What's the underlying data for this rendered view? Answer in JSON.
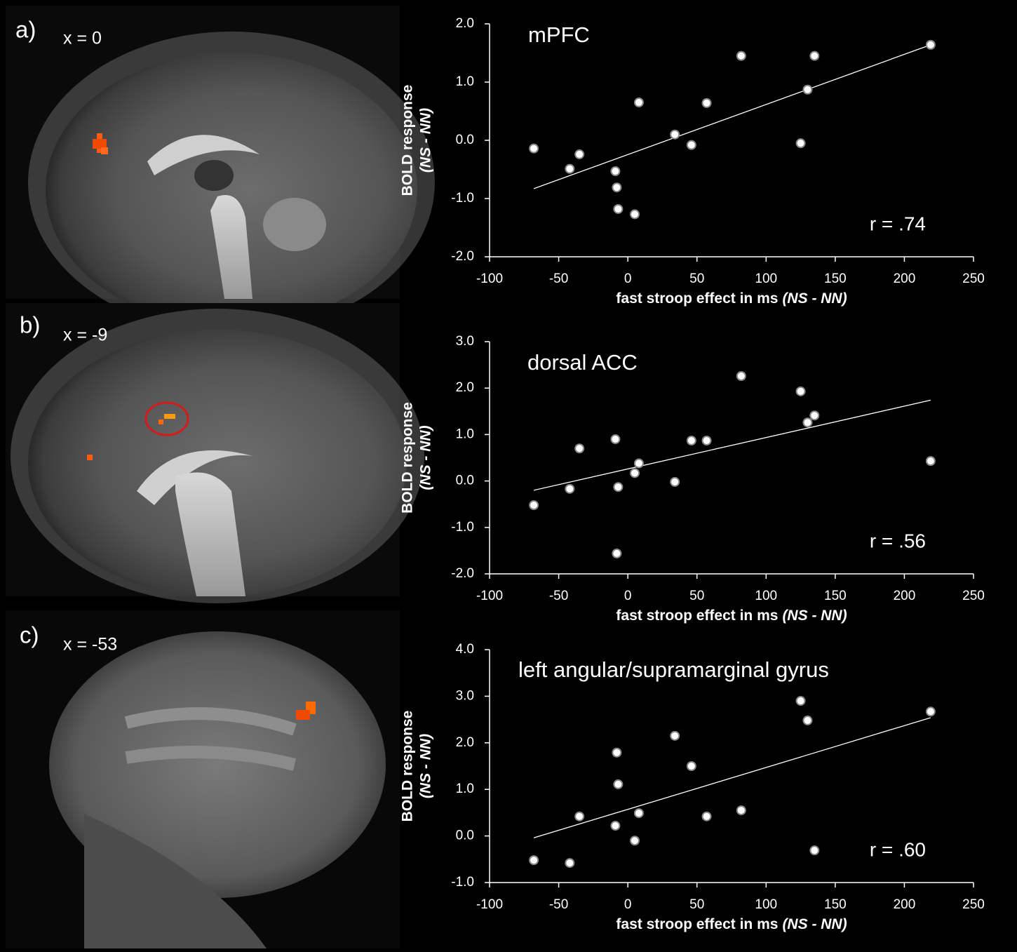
{
  "panels": [
    {
      "label": "a)",
      "slice": "x = 0"
    },
    {
      "label": "b)",
      "slice": "x = -9"
    },
    {
      "label": "c)",
      "slice": "x = -53"
    }
  ],
  "chart_data": [
    {
      "type": "scatter",
      "title": "mPFC",
      "annotation": "r = .74",
      "xlabel": "fast stroop effect in ms",
      "xlabel_suffix": "(NS - NN)",
      "ylabel": "BOLD response",
      "ylabel_sub": "(NS - NN)",
      "color": "#ffffff",
      "x": [
        -68,
        -42,
        -35,
        -9,
        -8,
        -7,
        5,
        8,
        34,
        46,
        57,
        82,
        125,
        130,
        135,
        219
      ],
      "y": [
        -0.14,
        -0.49,
        -0.24,
        -0.53,
        -0.81,
        -1.18,
        -1.27,
        0.65,
        0.1,
        -0.08,
        0.64,
        1.45,
        -0.05,
        0.87,
        1.45,
        1.64
      ],
      "trendline": {
        "x": [
          -68,
          219
        ],
        "y": [
          -0.83,
          1.64
        ]
      },
      "xlim": [
        -100,
        250
      ],
      "xticks": [
        -100,
        -50,
        0,
        50,
        100,
        150,
        200,
        250
      ],
      "ylim": [
        -2,
        2
      ],
      "yticks": [
        {
          "value": -2,
          "label": "-2.0"
        },
        {
          "value": -1,
          "label": "-1.0"
        },
        {
          "value": 0,
          "label": "0.0"
        },
        {
          "value": 1,
          "label": "1.0"
        },
        {
          "value": 2,
          "label": "2.0"
        }
      ]
    },
    {
      "type": "scatter",
      "title": "dorsal ACC",
      "annotation": "r = .56",
      "xlabel": "fast stroop effect in ms",
      "xlabel_suffix": "(NS - NN)",
      "ylabel": "BOLD response",
      "ylabel_sub": "(NS - NN)",
      "color": "#ffffff",
      "x": [
        -68,
        -42,
        -35,
        -9,
        -8,
        -7,
        5,
        8,
        34,
        46,
        57,
        82,
        125,
        130,
        135,
        219
      ],
      "y": [
        -0.52,
        -0.17,
        0.7,
        0.9,
        -1.56,
        -0.13,
        0.17,
        0.38,
        -0.02,
        0.87,
        0.87,
        2.26,
        1.93,
        1.26,
        1.41,
        0.43
      ],
      "trendline": {
        "x": [
          -68,
          219
        ],
        "y": [
          -0.2,
          1.74
        ]
      },
      "xlim": [
        -100,
        250
      ],
      "xticks": [
        -100,
        -50,
        0,
        50,
        100,
        150,
        200,
        250
      ],
      "ylim": [
        -2,
        3
      ],
      "yticks": [
        {
          "value": -2,
          "label": "-2.0"
        },
        {
          "value": -1,
          "label": "-1.0"
        },
        {
          "value": 0,
          "label": "0.0"
        },
        {
          "value": 1,
          "label": "1.0"
        },
        {
          "value": 2,
          "label": "2.0"
        },
        {
          "value": 3,
          "label": "3.0"
        }
      ]
    },
    {
      "type": "scatter",
      "title": "left angular/supramarginal gyrus",
      "annotation": "r = .60",
      "xlabel": "fast stroop effect in ms",
      "xlabel_suffix": "(NS - NN)",
      "ylabel": "BOLD response",
      "ylabel_sub": "(NS - NN)",
      "color": "#ffffff",
      "x": [
        -68,
        -42,
        -35,
        -9,
        -8,
        -7,
        5,
        8,
        34,
        46,
        57,
        82,
        125,
        130,
        135,
        219
      ],
      "y": [
        -0.52,
        -0.58,
        0.42,
        0.22,
        1.79,
        1.11,
        -0.1,
        0.49,
        2.15,
        1.5,
        0.42,
        0.55,
        2.9,
        2.48,
        -0.31,
        2.67
      ],
      "trendline": {
        "x": [
          -68,
          219
        ],
        "y": [
          -0.04,
          2.54
        ]
      },
      "xlim": [
        -100,
        250
      ],
      "xticks": [
        -100,
        -50,
        0,
        50,
        100,
        150,
        200,
        250
      ],
      "ylim": [
        -1,
        4
      ],
      "yticks": [
        {
          "value": -1,
          "label": "-1.0"
        },
        {
          "value": 0,
          "label": "0.0"
        },
        {
          "value": 1,
          "label": "1.0"
        },
        {
          "value": 2,
          "label": "2.0"
        },
        {
          "value": 3,
          "label": "3.0"
        },
        {
          "value": 4,
          "label": "4.0"
        }
      ]
    }
  ]
}
